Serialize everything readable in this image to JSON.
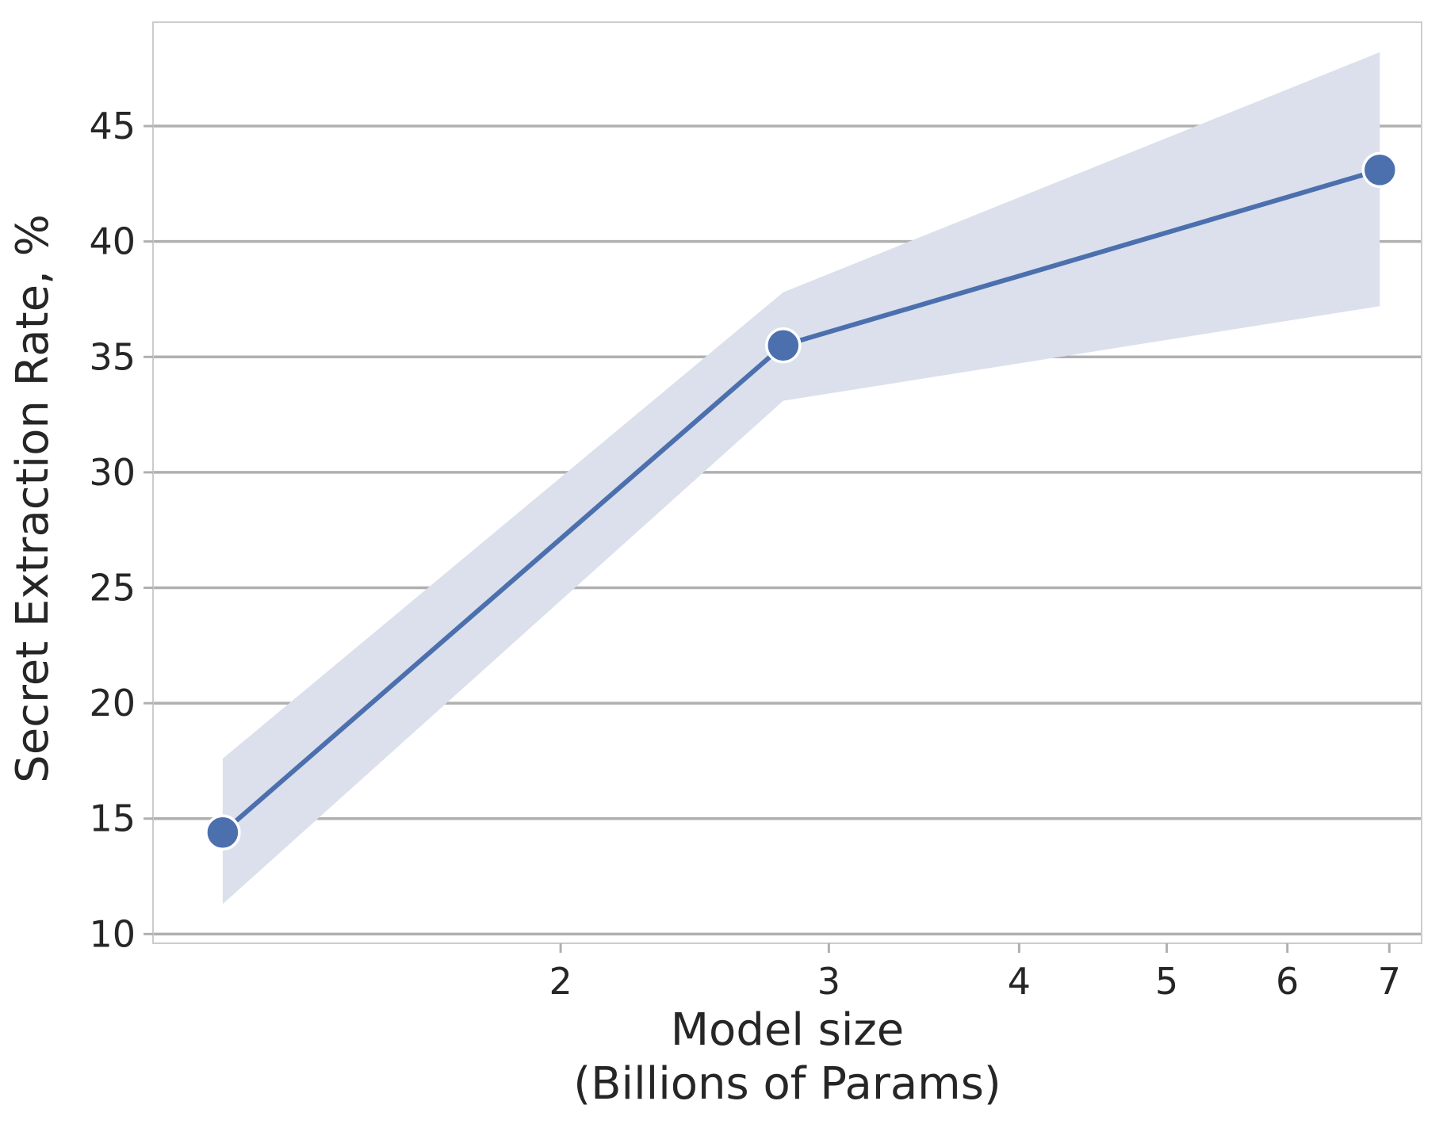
{
  "chart_data": {
    "type": "line",
    "xlabel_lines": [
      "Model size",
      "(Billions of Params)"
    ],
    "ylabel": "Secret Extraction Rate, %",
    "x_scale": "log",
    "xlim": [
      1.08,
      7.35
    ],
    "ylim": [
      9.6,
      49.5
    ],
    "x_ticks": [
      2,
      3,
      4,
      5,
      6,
      7
    ],
    "y_ticks": [
      10,
      15,
      20,
      25,
      30,
      35,
      40,
      45
    ],
    "grid": "horizontal",
    "colors": {
      "line": "#4c6fae",
      "band": "#dbe0ec",
      "grid": "#b0b0b0",
      "spine": "#cccccc",
      "text": "#262626"
    },
    "series": [
      {
        "x": [
          1.2,
          2.8,
          6.9
        ],
        "y": [
          14.4,
          35.5,
          43.1
        ],
        "ci_low": [
          11.3,
          33.1,
          37.2
        ],
        "ci_high": [
          17.6,
          37.8,
          48.2
        ]
      }
    ]
  }
}
